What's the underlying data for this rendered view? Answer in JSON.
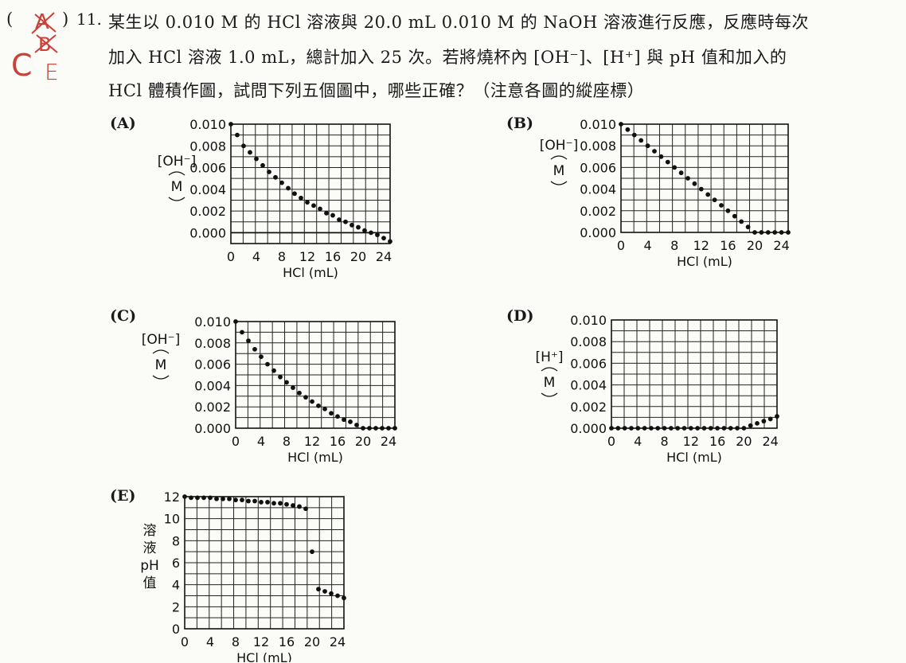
{
  "question": {
    "number": "11.",
    "open_paren": "(",
    "close_paren": ")",
    "line1": "某生以 0.010 M 的 HCl 溶液與 20.0 mL 0.010 M 的 NaOH 溶液進行反應，反應時每次",
    "line2": "加入 HCl 溶液 1.0 mL，總計加入 25 次。若將燒杯內 [OH⁻]、[H⁺] 與 pH 值和加入的",
    "line3": "HCl 體積作圖，試問下列五個圖中，哪些正確？（注意各圖的縱座標）"
  },
  "handwriting": {
    "answer_c": "C",
    "answer_e": "E",
    "crossed_a": "A",
    "crossed_b": "B",
    "color": "#c8423a"
  },
  "chart_data": [
    {
      "id": "A",
      "label": "(A)",
      "type": "scatter",
      "ylabel": "[OH⁻]",
      "yunit": "M",
      "xlabel": "HCl (mL)",
      "xlim": [
        0,
        25
      ],
      "ylim": [
        -0.001,
        0.01
      ],
      "xticks": [
        "0",
        "4",
        "8",
        "12",
        "16",
        "20",
        "24"
      ],
      "yticks": [
        "0.010",
        "0.008",
        "0.006",
        "0.004",
        "0.002",
        "0.000"
      ],
      "x": [
        0,
        1,
        2,
        3,
        4,
        5,
        6,
        7,
        8,
        9,
        10,
        11,
        12,
        13,
        14,
        15,
        16,
        17,
        18,
        19,
        20,
        21,
        22,
        23,
        24,
        25
      ],
      "y": [
        0.01,
        0.009,
        0.008,
        0.0074,
        0.0068,
        0.0062,
        0.0056,
        0.0051,
        0.0046,
        0.0041,
        0.0036,
        0.0032,
        0.0028,
        0.0025,
        0.0022,
        0.0018,
        0.0016,
        0.0012,
        0.001,
        0.0007,
        0.0005,
        0.0002,
        0.0,
        -0.0002,
        -0.0005,
        -0.0008
      ]
    },
    {
      "id": "B",
      "label": "(B)",
      "type": "scatter",
      "ylabel": "[OH⁻]",
      "yunit": "M",
      "xlabel": "HCl (mL)",
      "xlim": [
        0,
        25
      ],
      "ylim": [
        0,
        0.01
      ],
      "xticks": [
        "0",
        "4",
        "8",
        "12",
        "16",
        "20",
        "24"
      ],
      "yticks": [
        "0.010",
        "0.008",
        "0.006",
        "0.004",
        "0.002",
        "0.000"
      ],
      "x": [
        0,
        1,
        2,
        3,
        4,
        5,
        6,
        7,
        8,
        9,
        10,
        11,
        12,
        13,
        14,
        15,
        16,
        17,
        18,
        19,
        20,
        21,
        22,
        23,
        24,
        25
      ],
      "y": [
        0.01,
        0.0095,
        0.009,
        0.0085,
        0.008,
        0.0075,
        0.007,
        0.0065,
        0.006,
        0.0055,
        0.005,
        0.0045,
        0.004,
        0.0035,
        0.003,
        0.0025,
        0.002,
        0.0015,
        0.001,
        0.0005,
        0.0,
        0.0,
        0.0,
        0.0,
        0.0,
        0.0
      ]
    },
    {
      "id": "C",
      "label": "(C)",
      "type": "scatter",
      "ylabel": "[OH⁻]",
      "yunit": "M",
      "xlabel": "HCl (mL)",
      "xlim": [
        0,
        25
      ],
      "ylim": [
        0,
        0.01
      ],
      "xticks": [
        "0",
        "4",
        "8",
        "12",
        "16",
        "20",
        "24"
      ],
      "yticks": [
        "0.010",
        "0.008",
        "0.006",
        "0.004",
        "0.002",
        "0.000"
      ],
      "x": [
        0,
        1,
        2,
        3,
        4,
        5,
        6,
        7,
        8,
        9,
        10,
        11,
        12,
        13,
        14,
        15,
        16,
        17,
        18,
        19,
        20,
        21,
        22,
        23,
        24,
        25
      ],
      "y": [
        0.01,
        0.009,
        0.0082,
        0.0074,
        0.0067,
        0.006,
        0.0054,
        0.0048,
        0.0043,
        0.0038,
        0.0033,
        0.0029,
        0.0025,
        0.0021,
        0.0018,
        0.0014,
        0.0011,
        0.0008,
        0.0006,
        0.0003,
        0.0,
        0.0,
        0.0,
        0.0,
        0.0,
        0.0
      ]
    },
    {
      "id": "D",
      "label": "(D)",
      "type": "scatter",
      "ylabel": "[H⁺]",
      "yunit": "M",
      "xlabel": "HCl (mL)",
      "xlim": [
        0,
        25
      ],
      "ylim": [
        0,
        0.01
      ],
      "xticks": [
        "0",
        "4",
        "8",
        "12",
        "16",
        "20",
        "24"
      ],
      "yticks": [
        "0.010",
        "0.008",
        "0.006",
        "0.004",
        "0.002",
        "0.000"
      ],
      "x": [
        0,
        1,
        2,
        3,
        4,
        5,
        6,
        7,
        8,
        9,
        10,
        11,
        12,
        13,
        14,
        15,
        16,
        17,
        18,
        19,
        20,
        21,
        22,
        23,
        24,
        25
      ],
      "y": [
        0,
        0,
        0,
        0,
        0,
        0,
        0,
        0,
        0,
        0,
        0,
        0,
        0,
        0,
        0,
        0,
        0,
        0,
        0,
        0,
        0,
        0.00024,
        0.00045,
        0.00065,
        0.00085,
        0.0011
      ]
    },
    {
      "id": "E",
      "label": "(E)",
      "type": "scatter",
      "ylabel_lines": [
        "溶",
        "液",
        "pH",
        "值"
      ],
      "xlabel": "HCl (mL)",
      "xlim": [
        0,
        25
      ],
      "ylim": [
        0,
        12
      ],
      "xticks": [
        "0",
        "4",
        "8",
        "12",
        "16",
        "20",
        "24"
      ],
      "yticks": [
        "12",
        "10",
        "8",
        "6",
        "4",
        "2",
        "0"
      ],
      "x": [
        0,
        1,
        2,
        3,
        4,
        5,
        6,
        7,
        8,
        9,
        10,
        11,
        12,
        13,
        14,
        15,
        16,
        17,
        18,
        19,
        20,
        21,
        22,
        23,
        24,
        25
      ],
      "y": [
        12.0,
        11.9,
        11.9,
        11.9,
        11.9,
        11.8,
        11.8,
        11.8,
        11.7,
        11.7,
        11.6,
        11.6,
        11.5,
        11.5,
        11.4,
        11.4,
        11.3,
        11.2,
        11.1,
        10.9,
        7.0,
        3.6,
        3.4,
        3.2,
        3.0,
        2.8
      ]
    }
  ]
}
